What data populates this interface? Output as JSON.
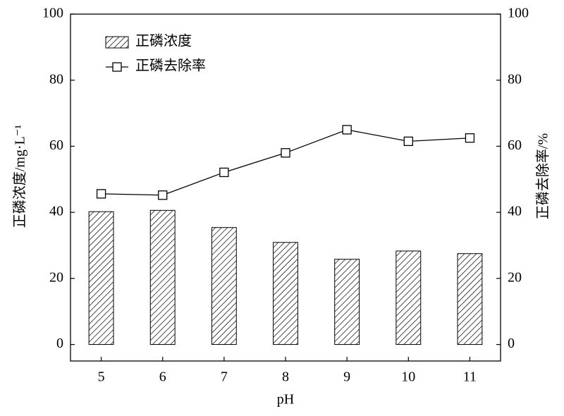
{
  "chart_data": {
    "type": "combo",
    "x_label": "pH",
    "y_label": "正磷浓度/mg·L⁻¹",
    "y2_label": "正磷去除率/%",
    "categories": [
      "5",
      "6",
      "7",
      "8",
      "9",
      "10",
      "11"
    ],
    "series": [
      {
        "name": "正磷浓度",
        "type": "bar",
        "color": "#000000",
        "values": [
          40.2,
          40.6,
          35.4,
          30.9,
          25.8,
          28.3,
          27.5
        ]
      },
      {
        "name": "正磷去除率",
        "type": "line",
        "axis": "y2",
        "color": "#000000",
        "values": [
          45.6,
          45.2,
          52.1,
          58.0,
          65.0,
          61.5,
          62.5
        ]
      }
    ],
    "ylim": [
      -5,
      100
    ],
    "yticks": [
      0,
      20,
      40,
      60,
      80,
      100
    ],
    "y2lim": [
      -5,
      100
    ],
    "y2ticks": [
      0,
      20,
      40,
      60,
      80,
      100
    ],
    "legend": "upper-left",
    "grid": false
  }
}
